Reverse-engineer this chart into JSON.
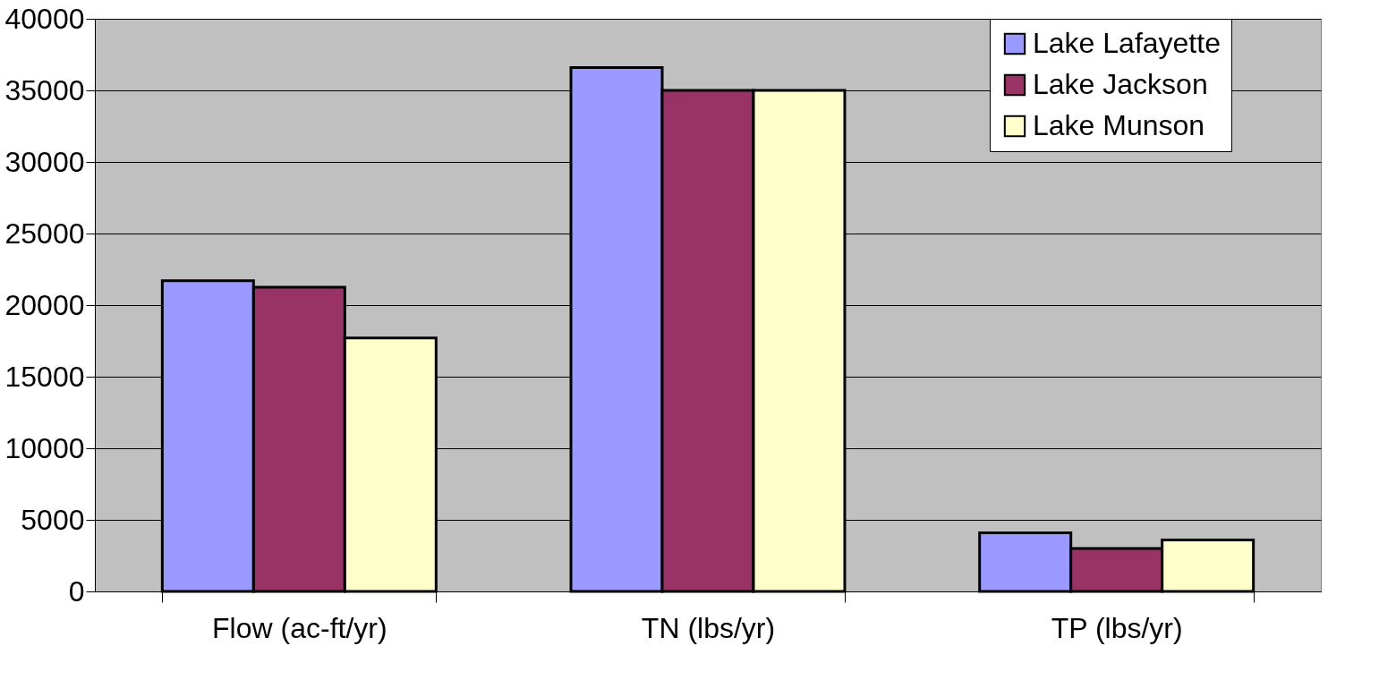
{
  "chart_data": {
    "type": "bar",
    "categories": [
      "Flow (ac-ft/yr)",
      "TN (lbs/yr)",
      "TP (lbs/yr)"
    ],
    "series": [
      {
        "name": "Lake Lafayette",
        "color": "#9999ff",
        "values": [
          21700,
          36600,
          4100
        ]
      },
      {
        "name": "Lake Jackson",
        "color": "#993366",
        "values": [
          21250,
          35000,
          3000
        ]
      },
      {
        "name": "Lake Munson",
        "color": "#ffffcc",
        "values": [
          17700,
          35000,
          3600
        ]
      }
    ],
    "ylim": [
      0,
      40000
    ],
    "yticks": [
      0,
      5000,
      10000,
      15000,
      20000,
      25000,
      30000,
      35000,
      40000
    ],
    "grid": "y",
    "legend": "right"
  }
}
